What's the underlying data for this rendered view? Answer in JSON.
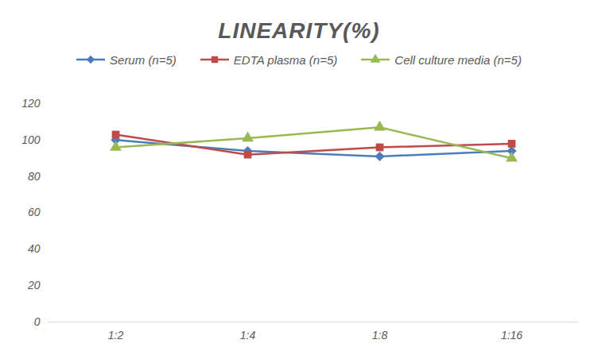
{
  "chart_data": {
    "type": "line",
    "title": "LINEARITY(%)",
    "categories": [
      "1:2",
      "1:4",
      "1:8",
      "1:16"
    ],
    "series": [
      {
        "name": "Serum (n=5)",
        "color": "#4a7ebb",
        "marker": "diamond",
        "line_style": "solid",
        "values": [
          100,
          94,
          91,
          94
        ]
      },
      {
        "name": "EDTA plasma (n=5)",
        "color": "#be4b48",
        "marker": "square",
        "line_style": "solid",
        "values": [
          103,
          92,
          96,
          98
        ]
      },
      {
        "name": "Cell culture media (n=5)",
        "color": "#98b954",
        "marker": "triangle",
        "line_style": "solid",
        "values": [
          96,
          101,
          107,
          90
        ]
      }
    ],
    "ylim": [
      0,
      120
    ],
    "yticks": [
      0,
      20,
      40,
      60,
      80,
      100,
      120
    ],
    "grid": false,
    "legend": "top"
  }
}
